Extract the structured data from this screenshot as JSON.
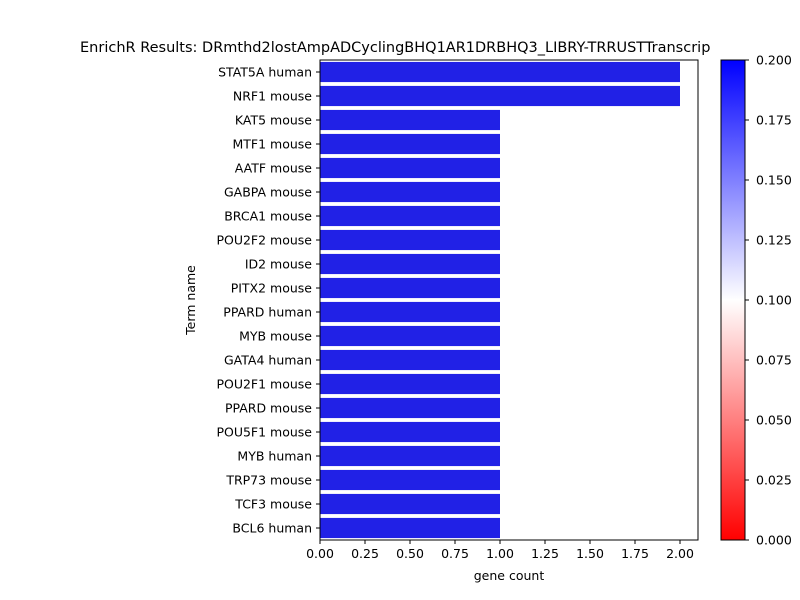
{
  "chart_data": {
    "type": "bar",
    "orientation": "horizontal",
    "title": "EnrichR Results: DRmthd2lostAmpADCyclingBHQ1AR1DRBHQ3_LIBRY-TRRUSTTranscrip",
    "xlabel": "gene count",
    "ylabel": "Term name",
    "categories": [
      "STAT5A human",
      "NRF1 mouse",
      "KAT5 mouse",
      "MTF1 mouse",
      "AATF mouse",
      "GABPA mouse",
      "BRCA1 mouse",
      "POU2F2 mouse",
      "ID2 mouse",
      "PITX2 mouse",
      "PPARD human",
      "MYB mouse",
      "GATA4 human",
      "POU2F1 mouse",
      "PPARD mouse",
      "POU5F1 mouse",
      "MYB human",
      "TRP73 mouse",
      "TCF3 mouse",
      "BCL6 human"
    ],
    "values": [
      2,
      2,
      1,
      1,
      1,
      1,
      1,
      1,
      1,
      1,
      1,
      1,
      1,
      1,
      1,
      1,
      1,
      1,
      1,
      1
    ],
    "xlim": [
      0,
      2.1
    ],
    "xticks": [
      "0.00",
      "0.25",
      "0.50",
      "0.75",
      "1.00",
      "1.25",
      "1.50",
      "1.75",
      "2.00"
    ],
    "bar_color": "#2121e6",
    "grid": false,
    "legend": "none",
    "colorbar": {
      "range": [
        0.0,
        0.2
      ],
      "ticks": [
        "0.000",
        "0.025",
        "0.050",
        "0.075",
        "0.100",
        "0.125",
        "0.150",
        "0.175",
        "0.200"
      ],
      "colormap": [
        "#ff0000",
        "#ffffff",
        "#0000ff"
      ]
    }
  }
}
